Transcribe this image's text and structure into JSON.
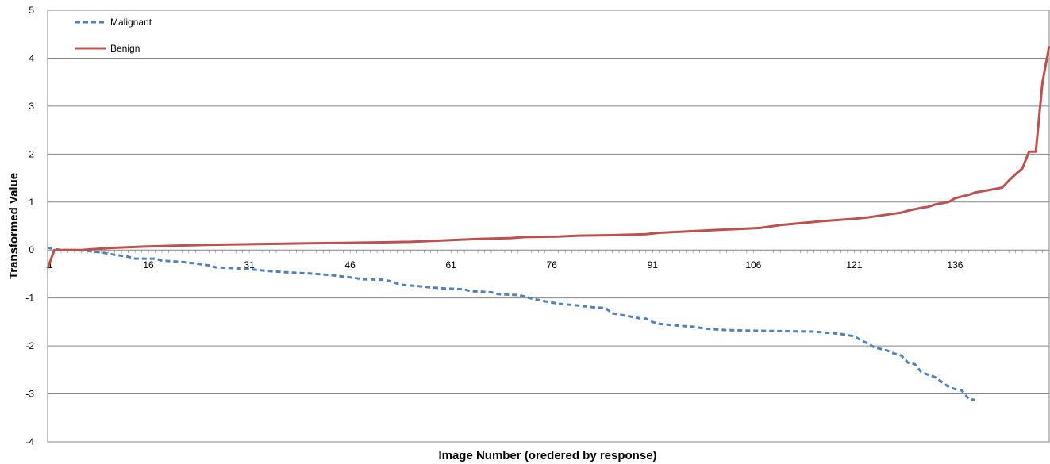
{
  "chart_data": {
    "type": "line",
    "title": "",
    "xlabel": "Image Number (oredered by response)",
    "ylabel": "Transformed Value",
    "x_tick_labels": [
      "1",
      "16",
      "31",
      "46",
      "61",
      "76",
      "91",
      "106",
      "121",
      "136"
    ],
    "x_tick_values": [
      1,
      16,
      31,
      46,
      61,
      76,
      91,
      106,
      121,
      136
    ],
    "xlim": [
      1,
      150
    ],
    "ylim": [
      -4,
      5
    ],
    "y_ticks": [
      -4,
      -3,
      -2,
      -1,
      0,
      1,
      2,
      3,
      4,
      5
    ],
    "grid": true,
    "legend_position": "top-left",
    "series": [
      {
        "name": "Malignant",
        "style": "dashed",
        "color": "#4F81BD",
        "points": [
          [
            1,
            0.05
          ],
          [
            2,
            0.02
          ],
          [
            3,
            0.0
          ],
          [
            5,
            0.0
          ],
          [
            7,
            -0.02
          ],
          [
            9,
            -0.05
          ],
          [
            11,
            -0.1
          ],
          [
            13,
            -0.14
          ],
          [
            14,
            -0.18
          ],
          [
            17,
            -0.18
          ],
          [
            18,
            -0.22
          ],
          [
            21,
            -0.25
          ],
          [
            23,
            -0.28
          ],
          [
            25,
            -0.32
          ],
          [
            26,
            -0.36
          ],
          [
            29,
            -0.38
          ],
          [
            31,
            -0.4
          ],
          [
            34,
            -0.44
          ],
          [
            37,
            -0.47
          ],
          [
            40,
            -0.49
          ],
          [
            43,
            -0.52
          ],
          [
            46,
            -0.57
          ],
          [
            48,
            -0.61
          ],
          [
            51,
            -0.62
          ],
          [
            52,
            -0.65
          ],
          [
            53,
            -0.7
          ],
          [
            54,
            -0.73
          ],
          [
            56,
            -0.75
          ],
          [
            58,
            -0.78
          ],
          [
            60,
            -0.8
          ],
          [
            63,
            -0.82
          ],
          [
            64,
            -0.86
          ],
          [
            67,
            -0.88
          ],
          [
            68,
            -0.92
          ],
          [
            71,
            -0.94
          ],
          [
            72,
            -0.97
          ],
          [
            73,
            -1.01
          ],
          [
            75,
            -1.07
          ],
          [
            77,
            -1.12
          ],
          [
            80,
            -1.16
          ],
          [
            82,
            -1.19
          ],
          [
            84,
            -1.21
          ],
          [
            85,
            -1.32
          ],
          [
            87,
            -1.37
          ],
          [
            89,
            -1.42
          ],
          [
            90,
            -1.43
          ],
          [
            91,
            -1.5
          ],
          [
            92,
            -1.54
          ],
          [
            95,
            -1.58
          ],
          [
            97,
            -1.6
          ],
          [
            99,
            -1.64
          ],
          [
            102,
            -1.67
          ],
          [
            105,
            -1.68
          ],
          [
            110,
            -1.69
          ],
          [
            115,
            -1.7
          ],
          [
            119,
            -1.75
          ],
          [
            121,
            -1.8
          ],
          [
            122,
            -1.88
          ],
          [
            123,
            -1.95
          ],
          [
            124,
            -2.03
          ],
          [
            126,
            -2.1
          ],
          [
            127,
            -2.16
          ],
          [
            128,
            -2.2
          ],
          [
            129,
            -2.35
          ],
          [
            130,
            -2.38
          ],
          [
            131,
            -2.55
          ],
          [
            132,
            -2.6
          ],
          [
            133,
            -2.65
          ],
          [
            134,
            -2.75
          ],
          [
            135,
            -2.85
          ],
          [
            136,
            -2.9
          ],
          [
            137,
            -2.93
          ],
          [
            138,
            -3.1
          ],
          [
            139,
            -3.13
          ]
        ]
      },
      {
        "name": "Benign",
        "style": "solid",
        "color": "#C0504D",
        "points": [
          [
            1,
            -0.38
          ],
          [
            2,
            0.0
          ],
          [
            6,
            0.0
          ],
          [
            8,
            0.02
          ],
          [
            10,
            0.04
          ],
          [
            15,
            0.07
          ],
          [
            20,
            0.09
          ],
          [
            25,
            0.11
          ],
          [
            30,
            0.12
          ],
          [
            35,
            0.13
          ],
          [
            40,
            0.14
          ],
          [
            45,
            0.15
          ],
          [
            50,
            0.16
          ],
          [
            55,
            0.17
          ],
          [
            60,
            0.2
          ],
          [
            65,
            0.23
          ],
          [
            70,
            0.25
          ],
          [
            72,
            0.27
          ],
          [
            77,
            0.28
          ],
          [
            80,
            0.3
          ],
          [
            85,
            0.31
          ],
          [
            90,
            0.33
          ],
          [
            92,
            0.36
          ],
          [
            95,
            0.38
          ],
          [
            98,
            0.4
          ],
          [
            101,
            0.42
          ],
          [
            104,
            0.44
          ],
          [
            107,
            0.46
          ],
          [
            110,
            0.52
          ],
          [
            113,
            0.56
          ],
          [
            116,
            0.6
          ],
          [
            119,
            0.63
          ],
          [
            121,
            0.65
          ],
          [
            123,
            0.68
          ],
          [
            125,
            0.72
          ],
          [
            127,
            0.76
          ],
          [
            128,
            0.78
          ],
          [
            129,
            0.82
          ],
          [
            131,
            0.88
          ],
          [
            132,
            0.9
          ],
          [
            133,
            0.95
          ],
          [
            135,
            1.0
          ],
          [
            136,
            1.08
          ],
          [
            138,
            1.15
          ],
          [
            139,
            1.2
          ],
          [
            141,
            1.25
          ],
          [
            143,
            1.3
          ],
          [
            144,
            1.45
          ],
          [
            145,
            1.58
          ],
          [
            146,
            1.7
          ],
          [
            147,
            2.05
          ],
          [
            148,
            2.05
          ],
          [
            149,
            3.5
          ],
          [
            150,
            4.25
          ]
        ]
      }
    ]
  }
}
